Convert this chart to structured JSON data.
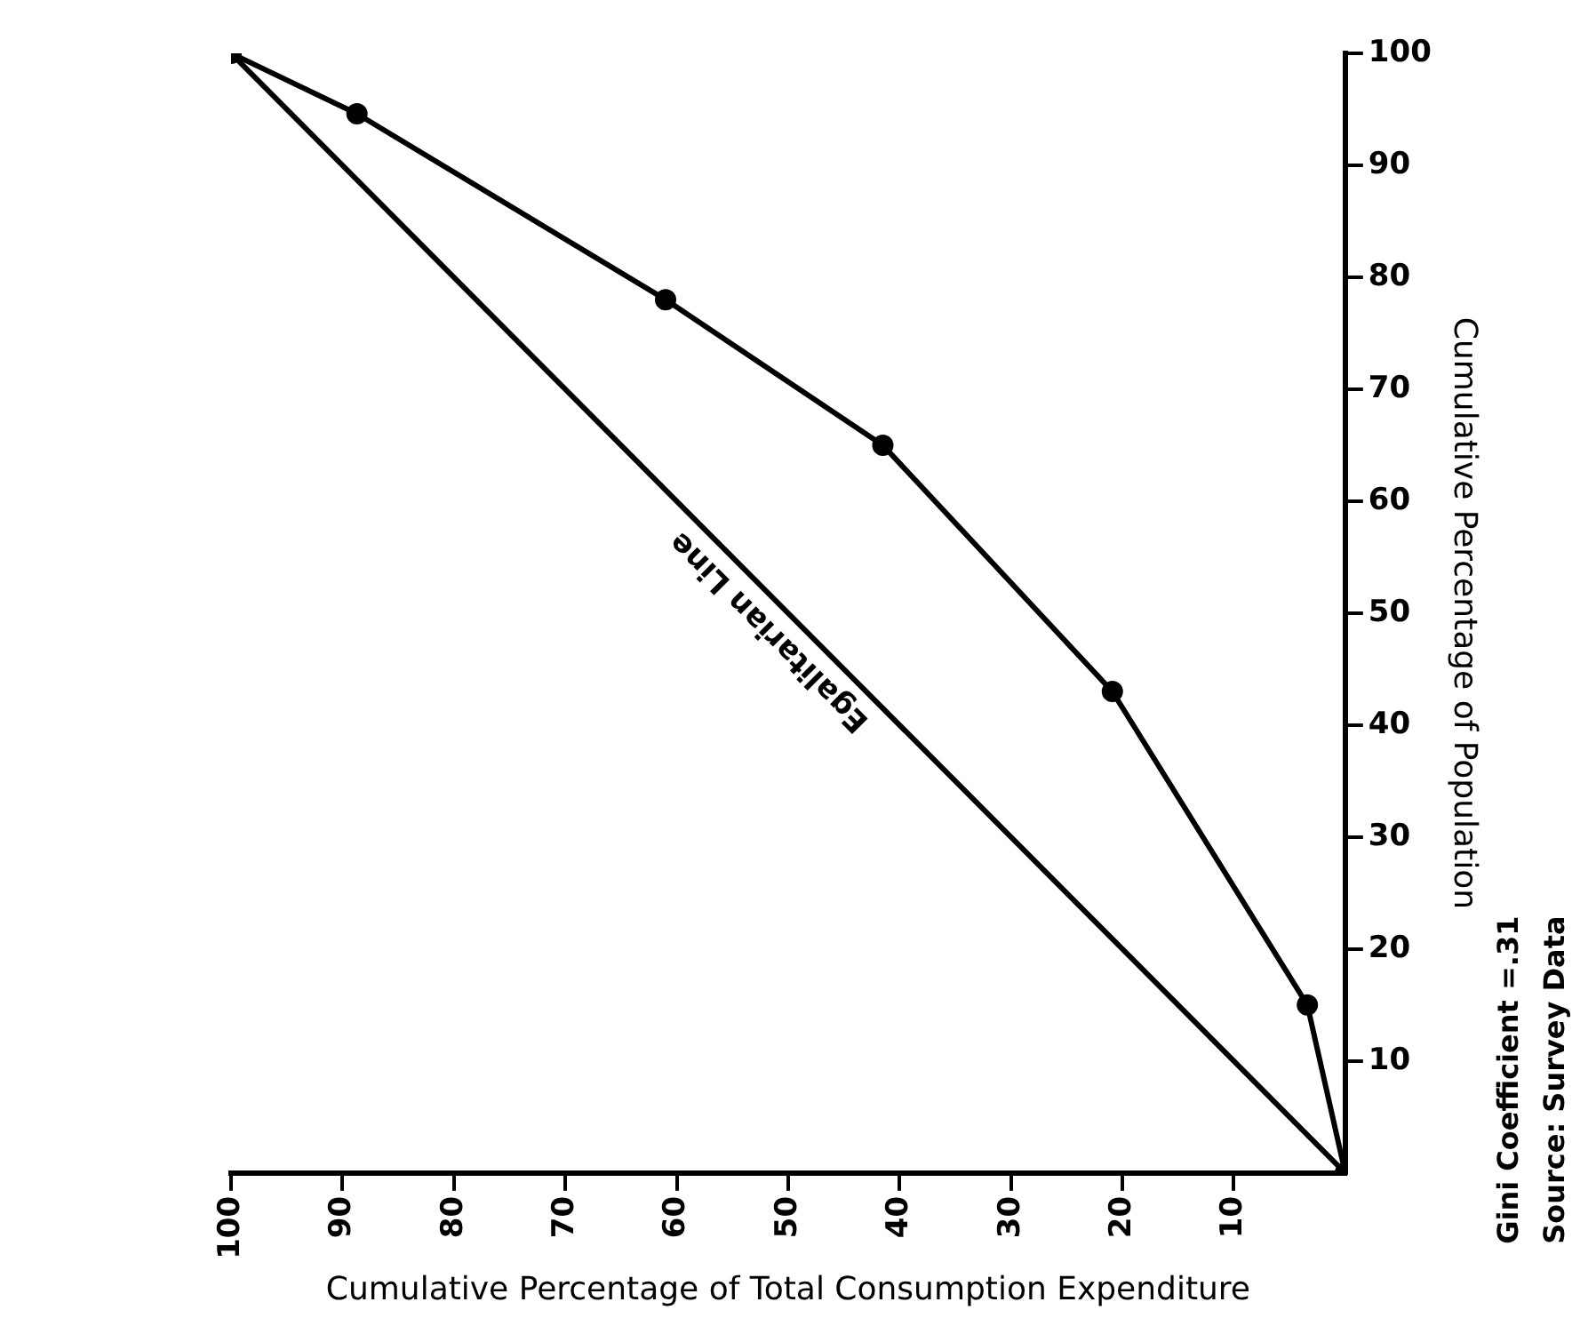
{
  "chart_data": {
    "type": "line",
    "xlabel": "Cumulative Percentage of Total Consumption Expenditure",
    "ylabel": "Cumulative Percentage of Population",
    "xlim": [
      100,
      0
    ],
    "xticks": [
      100,
      90,
      80,
      70,
      60,
      50,
      40,
      30,
      20,
      10
    ],
    "ylim": [
      0,
      100
    ],
    "yticks": [
      10,
      20,
      30,
      40,
      50,
      60,
      70,
      80,
      90,
      100
    ],
    "grid": false,
    "legend": false,
    "line_style": "solid",
    "series": [
      {
        "color": "#000000",
        "marker": "circle",
        "x": [
          0,
          3.4,
          20.9,
          41.5,
          61,
          88.7,
          100
        ],
        "values": [
          0,
          15,
          43,
          65,
          78,
          94.6,
          100
        ]
      },
      {
        "name": "Egalitarian Line",
        "color": "#000000",
        "marker": "none",
        "x": [
          0,
          100
        ],
        "values": [
          0,
          100
        ]
      }
    ],
    "annotations": [
      "Gini Coefficient =.31",
      "Source: Survey Data"
    ]
  }
}
